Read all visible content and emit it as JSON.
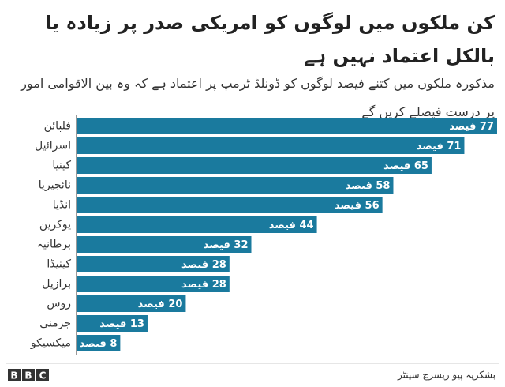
{
  "chart_data": {
    "type": "bar",
    "orientation": "horizontal",
    "title": "کن ملکوں میں لوگوں کو امریکی صدر پر زیادہ یا بالکل اعتماد نہیں ہے",
    "subtitle": "مذکورہ ملکوں میں کتنے فیصد لوگوں کو ڈونلڈ ٹرمپ پر اعتماد ہے کہ وہ بین الاقوامی امور پر درست فیصلے کریں گے",
    "categories": [
      "فلپائن",
      "اسرائیل",
      "کینیا",
      "نائجیریا",
      "انڈیا",
      "یوکرین",
      "برطانیہ",
      "کینیڈا",
      "برازیل",
      "روس",
      "جرمنی",
      "میکسیکو"
    ],
    "values": [
      77,
      71,
      65,
      58,
      56,
      44,
      32,
      28,
      28,
      20,
      13,
      8
    ],
    "value_labels": [
      "77 فیصد",
      "71 فیصد",
      "65 فیصد",
      "58 فیصد",
      "56 فیصد",
      "44 فیصد",
      "32 فیصد",
      "28 فیصد",
      "28 فیصد",
      "20 فیصد",
      "13 فیصد",
      "8 فیصد"
    ],
    "color": "#1a7a9e",
    "xlim": [
      0,
      77
    ],
    "source": "بشکریہ پیو ریسرچ سینٹر",
    "logo": "BBC"
  }
}
